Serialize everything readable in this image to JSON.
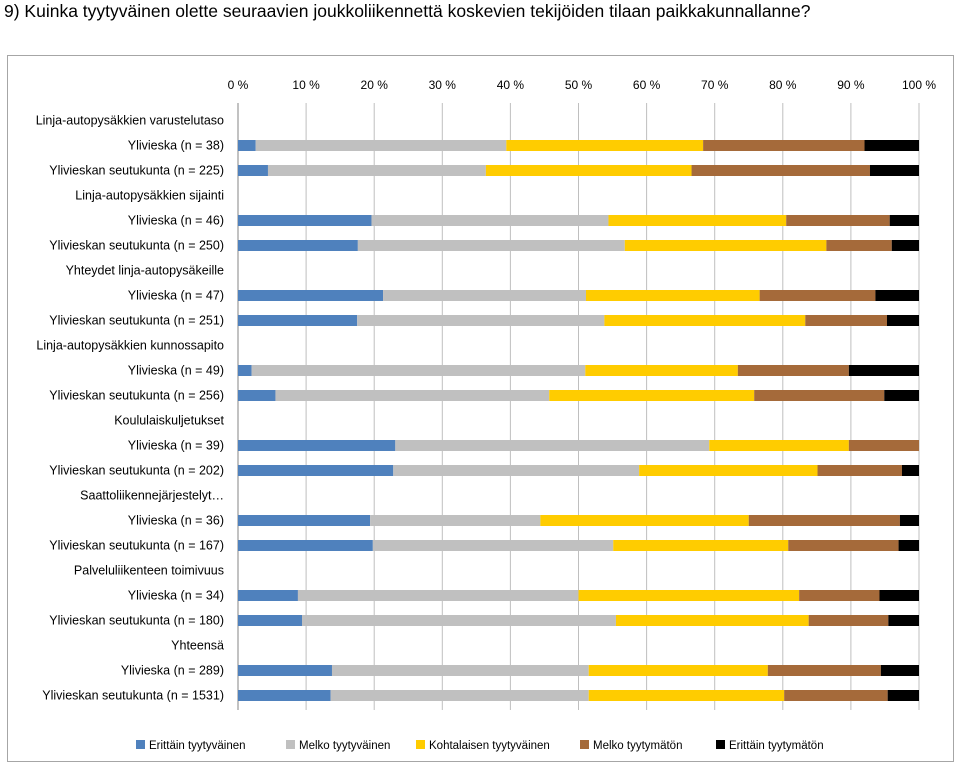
{
  "title": "9) Kuinka tyytyväinen olette seuraavien joukkoliikennettä koskevien tekijöiden tilaan paikkakunnallanne?",
  "chart_data": {
    "type": "bar",
    "orientation": "horizontal",
    "stacked": "percent",
    "xlim": [
      0,
      100
    ],
    "xticks": [
      "0 %",
      "10 %",
      "20 %",
      "30 %",
      "40 %",
      "50 %",
      "60 %",
      "70 %",
      "80 %",
      "90 %",
      "100 %"
    ],
    "grid": true,
    "legend_position": "bottom",
    "rows": [
      {
        "label": "Linja-autopysäkkien varustelutaso",
        "group": true
      },
      {
        "label": "Ylivieska (n = 38)",
        "values": [
          2.6,
          36.8,
          28.9,
          23.7,
          8.0
        ]
      },
      {
        "label": "Ylivieskan seutukunta (n = 225)",
        "values": [
          4.4,
          32.0,
          30.2,
          26.2,
          7.2
        ]
      },
      {
        "label": "Linja-autopysäkkien sijainti",
        "group": true
      },
      {
        "label": "Ylivieska (n = 46)",
        "values": [
          19.6,
          34.8,
          26.1,
          15.2,
          4.3
        ]
      },
      {
        "label": "Ylivieskan seutukunta (n = 250)",
        "values": [
          17.6,
          39.2,
          29.6,
          9.6,
          4.0
        ]
      },
      {
        "label": "Yhteydet linja-autopysäkeille",
        "group": true
      },
      {
        "label": "Ylivieska (n = 47)",
        "values": [
          21.3,
          29.8,
          25.5,
          17.0,
          6.4
        ]
      },
      {
        "label": "Ylivieskan seutukunta (n = 251)",
        "values": [
          17.5,
          36.3,
          29.5,
          12.0,
          4.7
        ]
      },
      {
        "label": "Linja-autopysäkkien kunnossapito",
        "group": true
      },
      {
        "label": "Ylivieska (n = 49)",
        "values": [
          2.0,
          49.0,
          22.4,
          16.3,
          10.3
        ]
      },
      {
        "label": "Ylivieskan seutukunta (n = 256)",
        "values": [
          5.5,
          40.2,
          30.1,
          19.1,
          5.1
        ]
      },
      {
        "label": "Koululaiskuljetukset",
        "group": true
      },
      {
        "label": "Ylivieska (n = 39)",
        "values": [
          23.1,
          46.1,
          20.5,
          10.3,
          0.0
        ]
      },
      {
        "label": "Ylivieskan seutukunta (n = 202)",
        "values": [
          22.8,
          36.1,
          26.2,
          12.4,
          2.5
        ]
      },
      {
        "label": "Saattoliikennejärjestelyt…",
        "group": true
      },
      {
        "label": "Ylivieska (n = 36)",
        "values": [
          19.4,
          25.0,
          30.6,
          22.2,
          2.8
        ]
      },
      {
        "label": "Ylivieskan seutukunta (n = 167)",
        "values": [
          19.8,
          35.3,
          25.7,
          16.2,
          3.0
        ]
      },
      {
        "label": "Palveluliikenteen toimivuus",
        "group": true
      },
      {
        "label": "Ylivieska (n = 34)",
        "values": [
          8.8,
          41.2,
          32.4,
          11.8,
          5.8
        ]
      },
      {
        "label": "Ylivieskan seutukunta (n = 180)",
        "values": [
          9.4,
          46.1,
          28.3,
          11.7,
          4.5
        ]
      },
      {
        "label": "Yhteensä",
        "group": true
      },
      {
        "label": "Ylivieska (n = 289)",
        "values": [
          13.8,
          37.7,
          26.3,
          16.6,
          5.6
        ]
      },
      {
        "label": "Ylivieskan seutukunta (n = 1531)",
        "values": [
          13.6,
          37.9,
          28.7,
          15.2,
          4.6
        ]
      }
    ],
    "series": [
      {
        "name": "Erittäin tyytyväinen",
        "color": "#4f81bd"
      },
      {
        "name": "Melko tyytyväinen",
        "color": "#c0c0c0"
      },
      {
        "name": "Kohtalaisen tyytyväinen",
        "color": "#ffcc00"
      },
      {
        "name": "Melko tyytymätön",
        "color": "#a56a3a"
      },
      {
        "name": "Erittäin tyytymätön",
        "color": "#000000"
      }
    ]
  }
}
